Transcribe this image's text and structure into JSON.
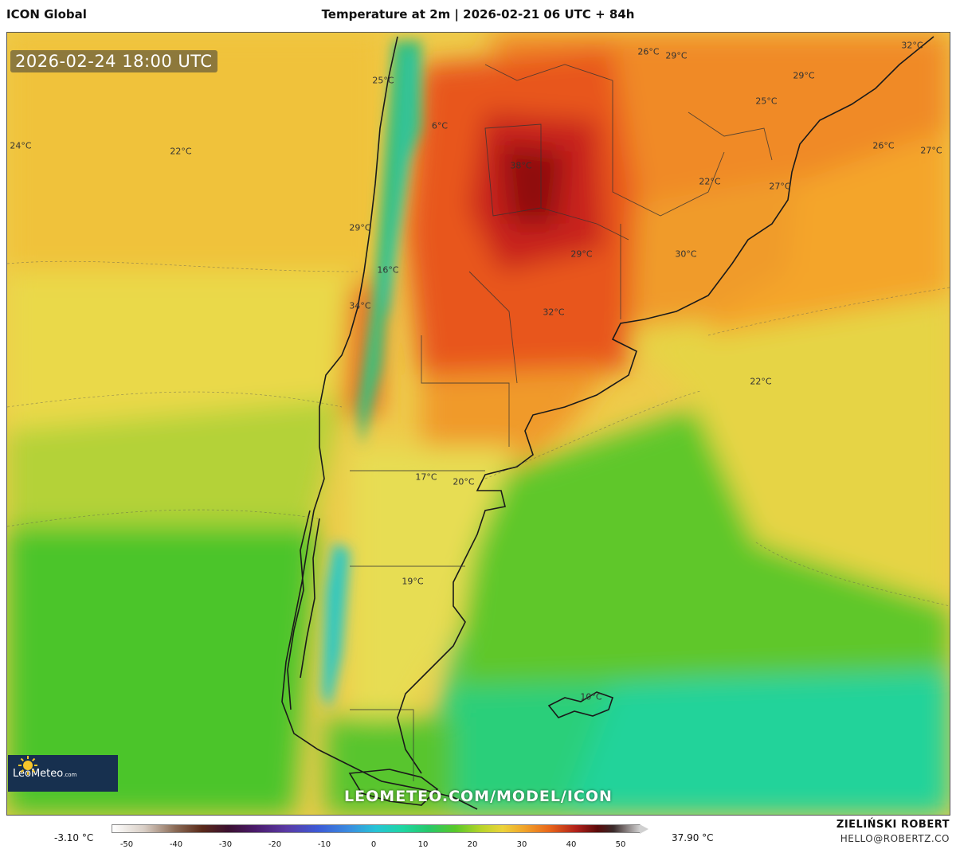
{
  "header": {
    "model": "ICON Global",
    "title": "Temperature at 2m | 2026-02-21 06 UTC + 84h"
  },
  "map": {
    "valid_time": "2026-02-24 18:00 UTC",
    "url": "LEOMETEO.COM/MODEL/ICON",
    "logo": {
      "name": "LeoMeteo",
      "suffix": ".com",
      "icon": "sun-icon"
    },
    "labels": [
      {
        "text": "25°C"
      },
      {
        "text": "6°C"
      },
      {
        "text": "24°C"
      },
      {
        "text": "22°C"
      },
      {
        "text": "38°C"
      },
      {
        "text": "26°C"
      },
      {
        "text": "29°C"
      },
      {
        "text": "32°C"
      },
      {
        "text": "29°C"
      },
      {
        "text": "25°C"
      },
      {
        "text": "26°C"
      },
      {
        "text": "27°C"
      },
      {
        "text": "22°C"
      },
      {
        "text": "27°C"
      },
      {
        "text": "29°C"
      },
      {
        "text": "16°C"
      },
      {
        "text": "29°C"
      },
      {
        "text": "30°C"
      },
      {
        "text": "34°C"
      },
      {
        "text": "32°C"
      },
      {
        "text": "22°C"
      },
      {
        "text": "17°C"
      },
      {
        "text": "20°C"
      },
      {
        "text": "19°C"
      },
      {
        "text": "10°C"
      }
    ]
  },
  "legend": {
    "min": "-3.10 °C",
    "max": "37.90 °C",
    "ticks": [
      "-50",
      "-40",
      "-30",
      "-20",
      "-10",
      "0",
      "10",
      "20",
      "30",
      "40",
      "50"
    ]
  },
  "credit": {
    "name": "ZIELIŃSKI ROBERT",
    "email": "HELLO@ROBERTZ.CO"
  }
}
